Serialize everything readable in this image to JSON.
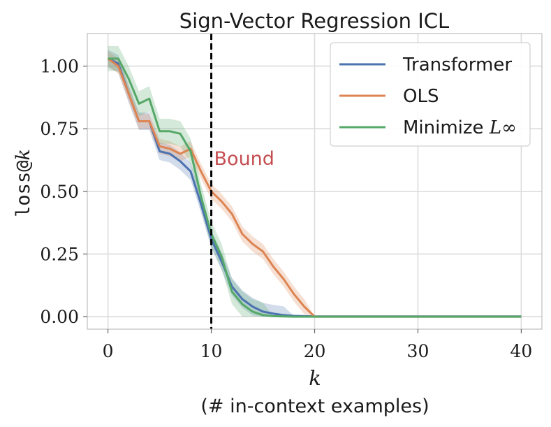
{
  "chart_data": {
    "type": "line",
    "title": "Sign-Vector Regression ICL",
    "xlabel": "k",
    "xlabel_sub": "(# in-context examples)",
    "ylabel_prefix": "loss@",
    "ylabel_var": "k",
    "xlim": [
      -2,
      42
    ],
    "ylim": [
      -0.05,
      1.13
    ],
    "xticks": [
      0,
      10,
      20,
      30,
      40
    ],
    "xtick_labels": [
      "0",
      "10",
      "20",
      "30",
      "40"
    ],
    "yticks": [
      0,
      0.25,
      0.5,
      0.75,
      1.0
    ],
    "ytick_labels": [
      "0.00",
      "0.25",
      "0.50",
      "0.75",
      "1.00"
    ],
    "grid": true,
    "legend_position": "top-right",
    "x": [
      0,
      1,
      2,
      3,
      4,
      5,
      6,
      7,
      8,
      9,
      10,
      11,
      12,
      13,
      14,
      15,
      16,
      17,
      18,
      19,
      20,
      21,
      22,
      23,
      24,
      25,
      26,
      27,
      28,
      29,
      30,
      31,
      32,
      33,
      34,
      35,
      36,
      37,
      38,
      39,
      40
    ],
    "series": [
      {
        "name": "Transformer",
        "name_suffix": "",
        "color": "#4c72b0",
        "values": [
          1.03,
          1.01,
          0.89,
          0.78,
          0.78,
          0.66,
          0.65,
          0.62,
          0.58,
          0.45,
          0.31,
          0.22,
          0.12,
          0.07,
          0.04,
          0.02,
          0.012,
          0.006,
          0.003,
          0.002,
          0.001,
          0.001,
          0.001,
          0.001,
          0.001,
          0.001,
          0.001,
          0.001,
          0.001,
          0.001,
          0.001,
          0.001,
          0.001,
          0.001,
          0.001,
          0.001,
          0.001,
          0.001,
          0.001,
          0.001,
          0.001
        ],
        "band": 0.035
      },
      {
        "name": "OLS",
        "name_suffix": "",
        "color": "#dd8452",
        "values": [
          1.03,
          1.0,
          0.89,
          0.78,
          0.78,
          0.68,
          0.67,
          0.65,
          0.67,
          0.58,
          0.5,
          0.46,
          0.41,
          0.33,
          0.29,
          0.26,
          0.2,
          0.15,
          0.09,
          0.04,
          0.0,
          0.0,
          0.0,
          0.0,
          0.0,
          0.0,
          0.0,
          0.0,
          0.0,
          0.0,
          0.0,
          0.0,
          0.0,
          0.0,
          0.0,
          0.0,
          0.0,
          0.0,
          0.0,
          0.0,
          0.0
        ],
        "band": 0.03
      },
      {
        "name": "Minimize ",
        "name_suffix": "L∞",
        "color": "#55a868",
        "values": [
          1.03,
          1.03,
          0.95,
          0.85,
          0.87,
          0.74,
          0.74,
          0.73,
          0.66,
          0.48,
          0.33,
          0.24,
          0.1,
          0.05,
          0.02,
          0.006,
          0.002,
          0.001,
          0.0,
          0.0,
          0.0,
          0.0,
          0.0,
          0.0,
          0.0,
          0.0,
          0.0,
          0.0,
          0.0,
          0.0,
          0.0,
          0.0,
          0.0,
          0.0,
          0.0,
          0.0,
          0.0,
          0.0,
          0.0,
          0.0,
          0.0
        ],
        "band": 0.05
      }
    ],
    "annotations": [
      {
        "type": "vline",
        "x": 10,
        "style": "dashed",
        "color": "#000000",
        "text": "Bound",
        "text_color": "#c44e52",
        "text_y": 0.63
      }
    ]
  }
}
